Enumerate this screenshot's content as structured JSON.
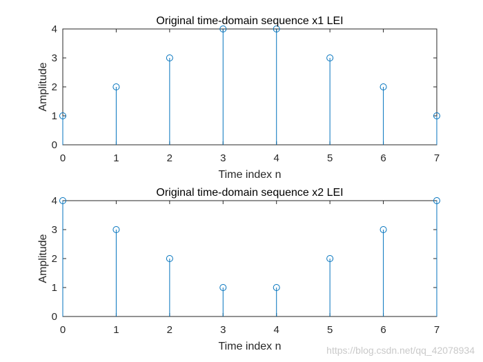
{
  "chart_data": [
    {
      "type": "stem",
      "title": "Original time-domain sequence x1 LEI",
      "xlabel": "Time index n",
      "ylabel": "Amplitude",
      "x": [
        0,
        1,
        2,
        3,
        4,
        5,
        6,
        7
      ],
      "values": [
        1,
        2,
        3,
        4,
        4,
        3,
        2,
        1
      ],
      "xlim": [
        0,
        7
      ],
      "ylim": [
        0,
        4
      ],
      "xticks": [
        "0",
        "1",
        "2",
        "3",
        "4",
        "5",
        "6",
        "7"
      ],
      "yticks": [
        "0",
        "1",
        "2",
        "3",
        "4"
      ],
      "grid": false,
      "color": "#0072bd"
    },
    {
      "type": "stem",
      "title": "Original time-domain sequence x2 LEI",
      "xlabel": "Time index n",
      "ylabel": "Amplitude",
      "x": [
        0,
        1,
        2,
        3,
        4,
        5,
        6,
        7
      ],
      "values": [
        4,
        3,
        2,
        1,
        1,
        2,
        3,
        4
      ],
      "xlim": [
        0,
        7
      ],
      "ylim": [
        0,
        4
      ],
      "xticks": [
        "0",
        "1",
        "2",
        "3",
        "4",
        "5",
        "6",
        "7"
      ],
      "yticks": [
        "0",
        "1",
        "2",
        "3",
        "4"
      ],
      "grid": false,
      "color": "#0072bd"
    }
  ],
  "watermark": "https://blog.csdn.net/qq_42078934"
}
